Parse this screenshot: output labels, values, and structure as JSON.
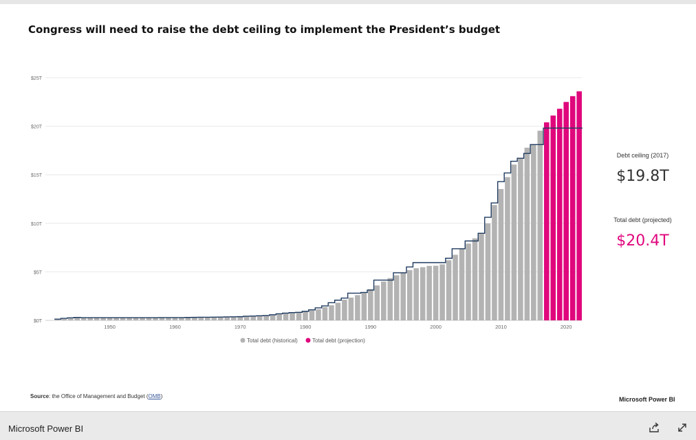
{
  "title": "Congress will need to raise the debt ceiling to implement the President’s budget",
  "kpis": {
    "ceiling_label": "Debt ceiling (2017)",
    "ceiling_value": "$19.8T",
    "projected_label": "Total debt (projected)",
    "projected_value": "$20.4T"
  },
  "source": {
    "label": "Source",
    "text": ": the Office of Management and Budget (",
    "link": "OMB",
    "close": ")"
  },
  "brand_inner": "Microsoft Power BI",
  "footer": {
    "brand": "Microsoft Power BI",
    "share_icon": "share-icon",
    "expand_icon": "expand-icon"
  },
  "colors": {
    "historical": "#b3b3b3",
    "projection": "#e0077d",
    "ceiling": "#1f3a5f",
    "grid": "#e8e8e8",
    "axis_text": "#666666",
    "kpi_ceiling": "#333333",
    "kpi_projected": "#e0077d"
  },
  "chart_data": {
    "type": "bar",
    "ylim": [
      0,
      25
    ],
    "y_ticks": [
      0,
      5,
      10,
      15,
      20,
      25
    ],
    "y_tick_labels": [
      "$0T",
      "$5T",
      "$10T",
      "$15T",
      "$20T",
      "$25T"
    ],
    "x_ticks": [
      1950,
      1960,
      1970,
      1980,
      1990,
      2000,
      2010,
      2020
    ],
    "legend_position": "bottom",
    "series": [
      {
        "name": "Total debt (historical)",
        "x": [
          1942,
          1943,
          1944,
          1945,
          1946,
          1947,
          1948,
          1949,
          1950,
          1951,
          1952,
          1953,
          1954,
          1955,
          1956,
          1957,
          1958,
          1959,
          1960,
          1961,
          1962,
          1963,
          1964,
          1965,
          1966,
          1967,
          1968,
          1969,
          1970,
          1971,
          1972,
          1973,
          1974,
          1975,
          1976,
          1977,
          1978,
          1979,
          1980,
          1981,
          1982,
          1983,
          1984,
          1985,
          1986,
          1987,
          1988,
          1989,
          1990,
          1991,
          1992,
          1993,
          1994,
          1995,
          1996,
          1997,
          1998,
          1999,
          2000,
          2001,
          2002,
          2003,
          2004,
          2005,
          2006,
          2007,
          2008,
          2009,
          2010,
          2011,
          2012,
          2013,
          2014,
          2015,
          2016
        ],
        "values": [
          0.08,
          0.14,
          0.2,
          0.26,
          0.27,
          0.26,
          0.25,
          0.25,
          0.26,
          0.26,
          0.26,
          0.27,
          0.27,
          0.27,
          0.27,
          0.27,
          0.28,
          0.29,
          0.29,
          0.29,
          0.3,
          0.31,
          0.32,
          0.32,
          0.33,
          0.34,
          0.37,
          0.37,
          0.38,
          0.41,
          0.44,
          0.47,
          0.48,
          0.54,
          0.63,
          0.71,
          0.78,
          0.83,
          0.91,
          0.99,
          1.14,
          1.37,
          1.56,
          1.82,
          2.13,
          2.35,
          2.6,
          2.86,
          3.21,
          3.6,
          4.0,
          4.35,
          4.64,
          4.92,
          5.18,
          5.37,
          5.48,
          5.61,
          5.63,
          5.77,
          6.2,
          6.76,
          7.35,
          7.91,
          8.45,
          8.95,
          9.99,
          11.88,
          13.53,
          14.76,
          16.05,
          16.72,
          17.79,
          18.12,
          19.54
        ]
      },
      {
        "name": "Total debt (projection)",
        "x": [
          2017,
          2018,
          2019,
          2020,
          2021,
          2022
        ],
        "values": [
          20.4,
          21.1,
          21.8,
          22.5,
          23.1,
          23.6
        ]
      }
    ],
    "ceiling": {
      "name": "Debt ceiling",
      "x": [
        1942,
        1943,
        1944,
        1945,
        1946,
        1947,
        1948,
        1949,
        1950,
        1951,
        1952,
        1953,
        1954,
        1955,
        1956,
        1957,
        1958,
        1959,
        1960,
        1961,
        1962,
        1963,
        1964,
        1965,
        1966,
        1967,
        1968,
        1969,
        1970,
        1971,
        1972,
        1973,
        1974,
        1975,
        1976,
        1977,
        1978,
        1979,
        1980,
        1981,
        1982,
        1983,
        1984,
        1985,
        1986,
        1987,
        1988,
        1989,
        1990,
        1991,
        1992,
        1993,
        1994,
        1995,
        1996,
        1997,
        1998,
        1999,
        2000,
        2001,
        2002,
        2003,
        2004,
        2005,
        2006,
        2007,
        2008,
        2009,
        2010,
        2011,
        2012,
        2013,
        2014,
        2015,
        2016,
        2017,
        2018,
        2019,
        2020,
        2021,
        2022
      ],
      "values": [
        0.13,
        0.21,
        0.26,
        0.3,
        0.28,
        0.28,
        0.28,
        0.28,
        0.28,
        0.28,
        0.28,
        0.28,
        0.28,
        0.28,
        0.28,
        0.28,
        0.29,
        0.29,
        0.29,
        0.29,
        0.3,
        0.31,
        0.32,
        0.32,
        0.33,
        0.34,
        0.36,
        0.37,
        0.38,
        0.43,
        0.45,
        0.47,
        0.5,
        0.58,
        0.68,
        0.75,
        0.8,
        0.83,
        0.93,
        1.08,
        1.29,
        1.49,
        1.82,
        2.08,
        2.3,
        2.8,
        2.8,
        2.87,
        3.12,
        4.15,
        4.15,
        4.15,
        4.9,
        4.9,
        5.5,
        5.95,
        5.95,
        5.95,
        5.95,
        5.95,
        6.4,
        7.38,
        7.38,
        8.18,
        8.18,
        8.97,
        10.62,
        12.1,
        14.29,
        15.19,
        16.39,
        16.7,
        17.2,
        18.11,
        18.11,
        19.81,
        19.81,
        19.81,
        19.81,
        19.81,
        19.81
      ]
    }
  }
}
